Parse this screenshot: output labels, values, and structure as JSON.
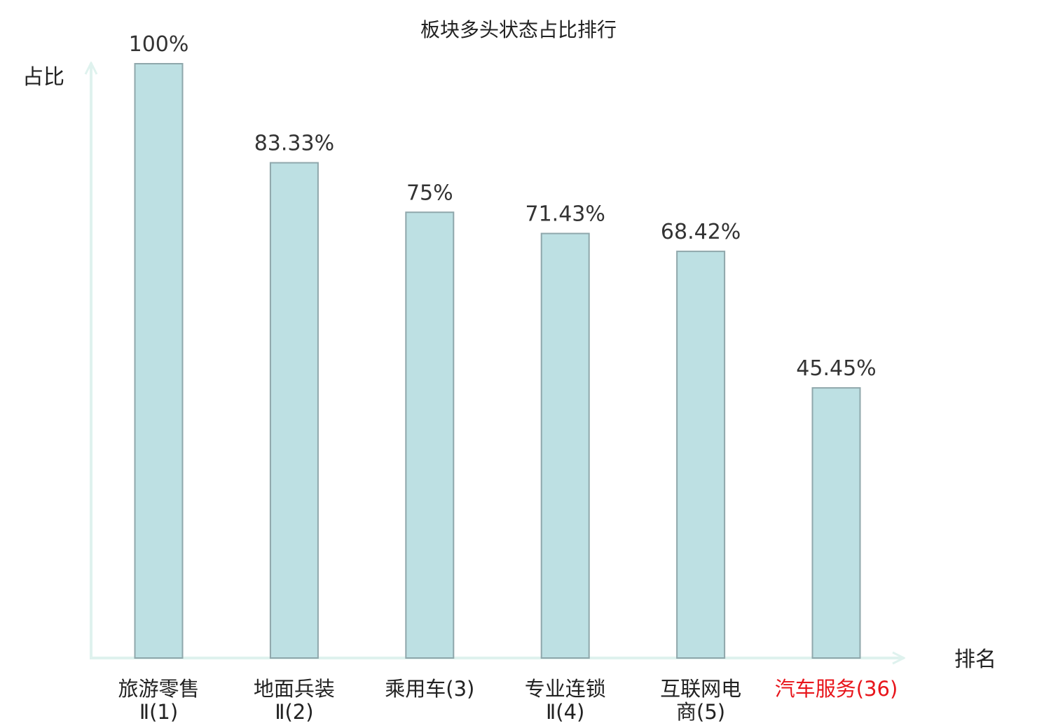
{
  "chart_data": {
    "type": "bar",
    "title": "板块多头状态占比排行",
    "ylabel": "占比",
    "xlabel": "排名",
    "ylim": [
      0,
      100
    ],
    "grid": false,
    "categories": [
      {
        "lines": [
          "旅游零售",
          "Ⅱ(1)"
        ]
      },
      {
        "lines": [
          "地面兵装",
          "Ⅱ(2)"
        ]
      },
      {
        "lines": [
          "乘用车(3)"
        ]
      },
      {
        "lines": [
          "专业连锁",
          "Ⅱ(4)"
        ]
      },
      {
        "lines": [
          "互联网电",
          "商(5)"
        ]
      },
      {
        "lines": [
          "汽车服务(36)"
        ],
        "highlight": true
      }
    ],
    "values": [
      100,
      83.33,
      75,
      71.43,
      68.42,
      45.45
    ],
    "value_labels": [
      "100%",
      "83.33%",
      "75%",
      "71.43%",
      "68.42%",
      "45.45%"
    ]
  },
  "colors": {
    "bar_fill": "#bde0e3",
    "bar_stroke": "#8fa7ab",
    "axis": "#dff2ee",
    "highlight_text": "#e8151b",
    "text": "#222222"
  }
}
